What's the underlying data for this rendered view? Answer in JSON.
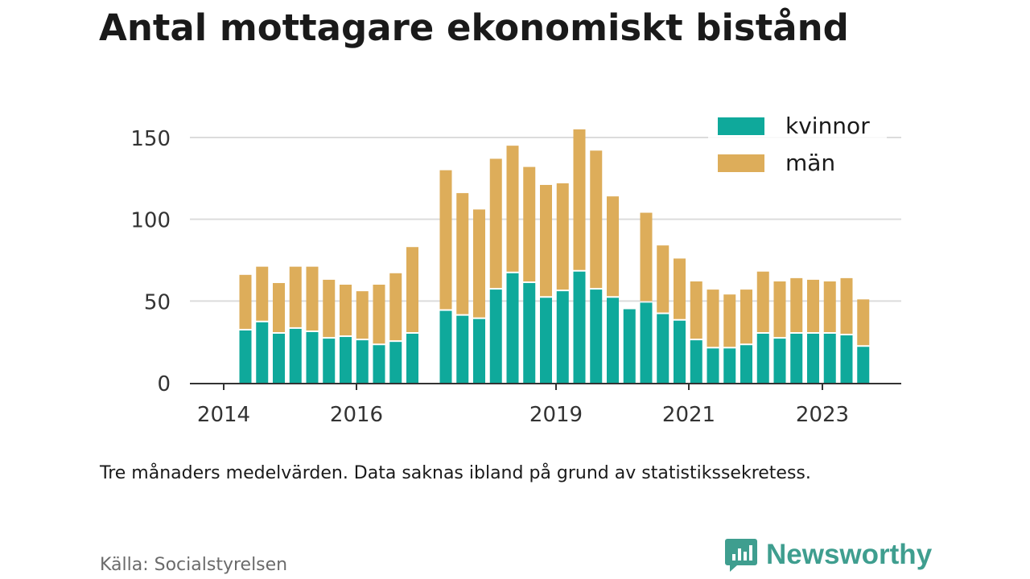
{
  "title": "Antal mottagare ekonomiskt bistånd",
  "note": "Tre månaders medelvärden. Data saknas ibland på grund av statistikssekretess.",
  "source": "Källa: Socialstyrelsen",
  "brand": {
    "name": "Newsworthy",
    "icon": "newsworthy-logo-icon"
  },
  "colors": {
    "kvinnor": "#0fa99b",
    "man": "#ddad5a",
    "grid": "#dcdcdc",
    "axis": "#333333"
  },
  "chart_data": {
    "type": "bar",
    "stacked": true,
    "x_unit": "quarter",
    "x": [
      "2014Q2",
      "2014Q3",
      "2014Q4",
      "2015Q1",
      "2015Q2",
      "2015Q3",
      "2015Q4",
      "2016Q1",
      "2016Q2",
      "2016Q3",
      "2016Q4",
      "2017Q1",
      "2017Q2",
      "2017Q3",
      "2017Q4",
      "2018Q1",
      "2018Q2",
      "2018Q3",
      "2018Q4",
      "2019Q1",
      "2019Q2",
      "2019Q3",
      "2019Q4",
      "2020Q1",
      "2020Q2",
      "2020Q3",
      "2020Q4",
      "2021Q1",
      "2021Q2",
      "2021Q3",
      "2021Q4",
      "2022Q1",
      "2022Q2",
      "2022Q3",
      "2022Q4",
      "2023Q1",
      "2023Q2",
      "2023Q3"
    ],
    "series": [
      {
        "name": "kvinnor",
        "values": [
          32,
          37,
          30,
          33,
          31,
          27,
          28,
          26,
          23,
          25,
          30,
          null,
          44,
          41,
          39,
          57,
          67,
          61,
          52,
          56,
          68,
          57,
          52,
          45,
          49,
          42,
          38,
          26,
          21,
          21,
          23,
          30,
          27,
          30,
          30,
          30,
          29,
          22
        ]
      },
      {
        "name": "män",
        "values": [
          34,
          34,
          31,
          38,
          40,
          36,
          32,
          30,
          37,
          42,
          53,
          null,
          86,
          75,
          67,
          80,
          78,
          71,
          69,
          66,
          87,
          85,
          62,
          0,
          55,
          42,
          38,
          36,
          36,
          33,
          34,
          38,
          35,
          34,
          33,
          32,
          35,
          29
        ]
      }
    ],
    "ylim": [
      0,
      160
    ],
    "yticks": [
      0,
      50,
      100,
      150
    ],
    "xticks": [
      "2014",
      "2016",
      "2019",
      "2021",
      "2023"
    ],
    "xlabel": "",
    "ylabel": "",
    "grid": true,
    "legend": {
      "position": "top-right",
      "entries": [
        "kvinnor",
        "män"
      ]
    }
  }
}
